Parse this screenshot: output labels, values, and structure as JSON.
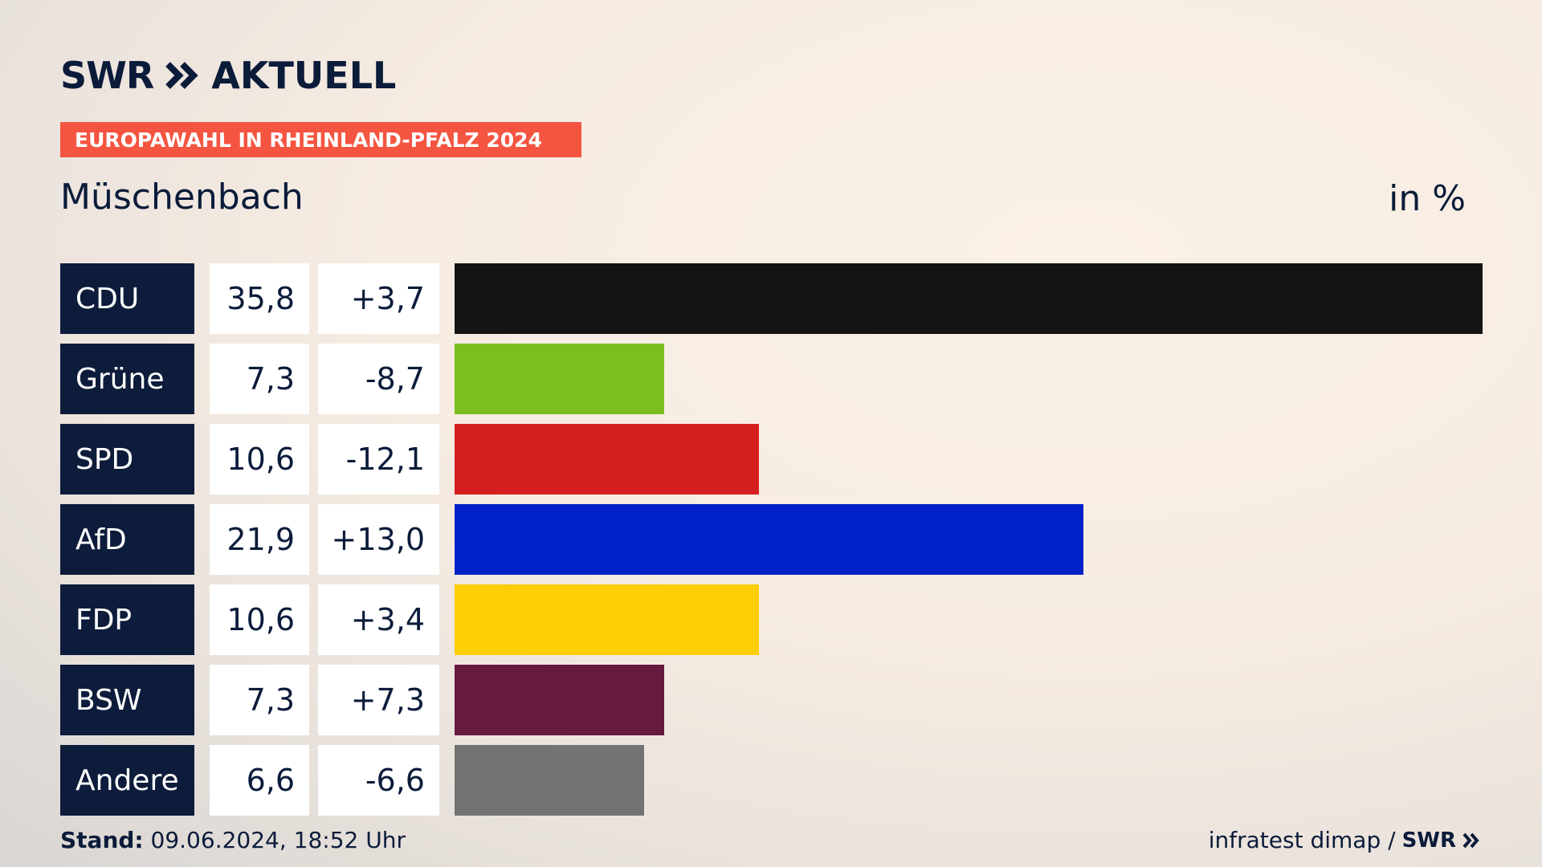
{
  "header": {
    "brand": "SWR",
    "app": "AKTUELL",
    "banner": "EUROPAWAHL IN RHEINLAND-PFALZ 2024"
  },
  "title": "Müschenbach",
  "unit": "in %",
  "chart_data": {
    "type": "bar",
    "orientation": "horizontal",
    "categories": [
      "CDU",
      "Grüne",
      "SPD",
      "AfD",
      "FDP",
      "BSW",
      "Andere"
    ],
    "values": [
      35.8,
      7.3,
      10.6,
      21.9,
      10.6,
      7.3,
      6.6
    ],
    "value_labels": [
      "35,8",
      "7,3",
      "10,6",
      "21,9",
      "10,6",
      "7,3",
      "6,6"
    ],
    "changes": [
      "+3,7",
      "-8,7",
      "-12,1",
      "+13,0",
      "+3,4",
      "+7,3",
      "-6,6"
    ],
    "colors": [
      "#141414",
      "#7bbf1e",
      "#d51f1f",
      "#0021c8",
      "#fdcd06",
      "#661a3e",
      "#737373"
    ],
    "title": "Müschenbach",
    "unit": "in %"
  },
  "footer": {
    "stand_label": "Stand:",
    "stand_value": "09.06.2024, 18:52 Uhr",
    "source": "infratest dimap /",
    "source_brand": "SWR"
  }
}
